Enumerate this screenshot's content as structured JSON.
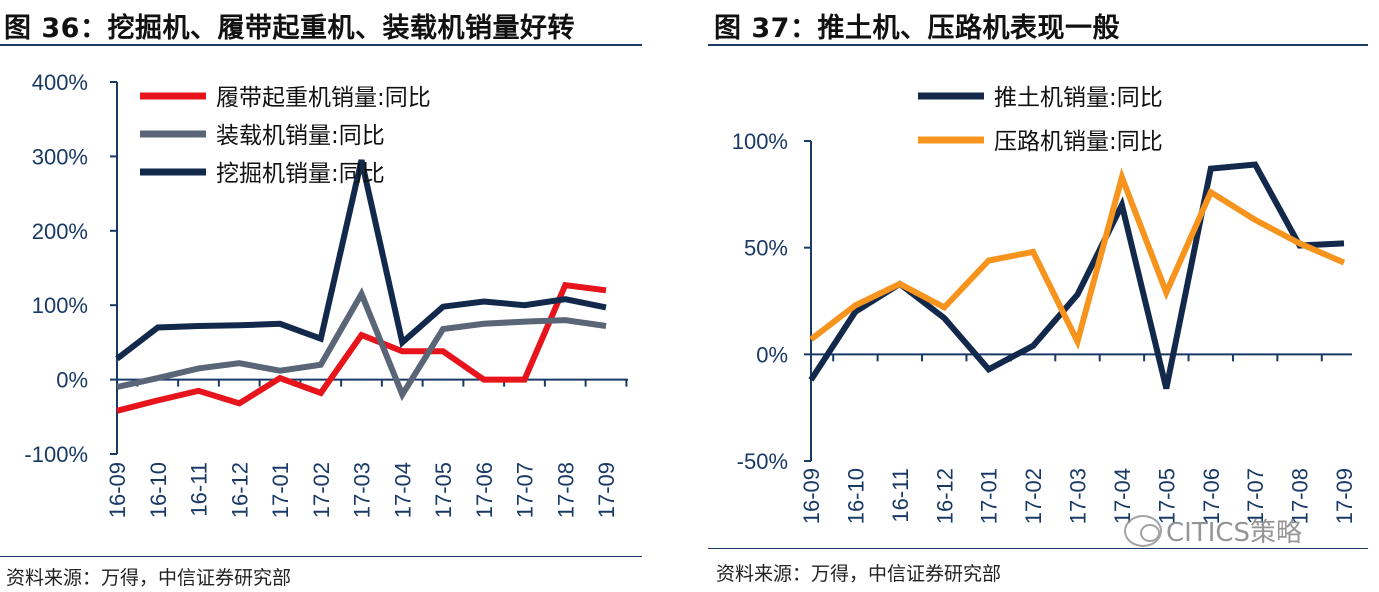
{
  "left": {
    "title": "图 36：挖掘机、履带起重机、装载机销量好转",
    "source": "资料来源：万得，中信证券研究部"
  },
  "right": {
    "title": "图 37：推土机、压路机表现一般",
    "source": "资料来源：万得，中信证券研究部"
  },
  "watermark": "CITICS策略",
  "chart_data": [
    {
      "type": "line",
      "title": "",
      "x": [
        "16-09",
        "16-10",
        "16-11",
        "16-12",
        "17-01",
        "17-02",
        "17-03",
        "17-04",
        "17-05",
        "17-06",
        "17-07",
        "17-08",
        "17-09"
      ],
      "ylim": [
        -100,
        400
      ],
      "yticks": [
        "400%",
        "300%",
        "200%",
        "100%",
        "0%",
        "-100%"
      ],
      "ytick_values": [
        400,
        300,
        200,
        100,
        0,
        -100
      ],
      "legend_position": "top-left",
      "grid": false,
      "series": [
        {
          "name": "履带起重机销量:同比",
          "color": "#e8141b",
          "values": [
            -42,
            -28,
            -15,
            -32,
            2,
            -18,
            60,
            38,
            38,
            0,
            0,
            127,
            120
          ]
        },
        {
          "name": "装载机销量:同比",
          "color": "#5a6577",
          "values": [
            -10,
            2,
            15,
            22,
            12,
            20,
            115,
            -20,
            68,
            75,
            78,
            80,
            72
          ]
        },
        {
          "name": "挖掘机销量:同比",
          "color": "#13294b",
          "values": [
            28,
            70,
            72,
            73,
            75,
            55,
            295,
            50,
            98,
            105,
            100,
            108,
            97
          ]
        }
      ]
    },
    {
      "type": "line",
      "title": "",
      "x": [
        "16-09",
        "16-10",
        "16-11",
        "16-12",
        "17-01",
        "17-02",
        "17-03",
        "17-04",
        "17-05",
        "17-06",
        "17-07",
        "17-08",
        "17-09"
      ],
      "ylim": [
        -50,
        100
      ],
      "yticks": [
        "100%",
        "50%",
        "0%",
        "-50%"
      ],
      "ytick_values": [
        100,
        50,
        0,
        -50
      ],
      "legend_position": "top-left",
      "grid": false,
      "series": [
        {
          "name": "推土机销量:同比",
          "color": "#13294b",
          "values": [
            -12,
            20,
            33,
            17,
            -7,
            4,
            28,
            70,
            -16,
            87,
            89,
            51,
            52
          ]
        },
        {
          "name": "压路机销量:同比",
          "color": "#f7941d",
          "values": [
            7,
            23,
            33,
            22,
            44,
            48,
            6,
            83,
            29,
            76,
            63,
            52,
            43
          ]
        }
      ]
    }
  ]
}
